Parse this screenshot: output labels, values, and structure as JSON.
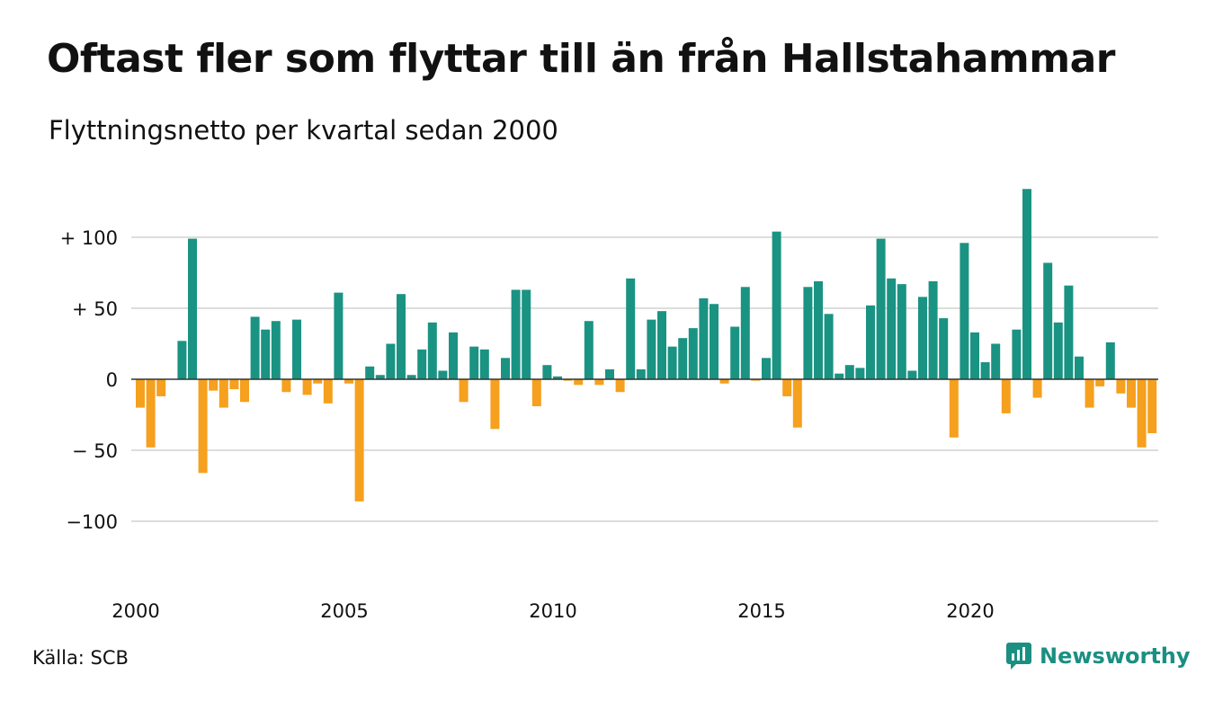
{
  "title": "Oftast fler som flyttar till än från Hallstahammar",
  "subtitle": "Flyttningsnetto per kvartal sedan 2000",
  "source": "Källa: SCB",
  "brand": "Newsworthy",
  "brand_icon": "newsworthy-logo-icon",
  "colors": {
    "positive": "#1a9383",
    "negative": "#f5a01e",
    "grid": "#dddddd",
    "baseline": "#333333"
  },
  "chart_data": {
    "type": "bar",
    "title": "Oftast fler som flyttar till än från Hallstahammar",
    "subtitle": "Flyttningsnetto per kvartal sedan 2000",
    "xlabel": "",
    "ylabel": "",
    "ylim": [
      -140,
      140
    ],
    "grid": true,
    "yticks": [
      100,
      50,
      0,
      -50,
      -100
    ],
    "ytick_labels": [
      "+ 100",
      "+  50",
      "0",
      "− 50",
      "−100"
    ],
    "xticks": [
      "2000",
      "2005",
      "2010",
      "2015",
      "2020"
    ],
    "start": "2000 Q1",
    "series": [
      {
        "values": [
          -20,
          -48,
          -12,
          0,
          27,
          99,
          -66,
          -8,
          -20,
          -7,
          -16,
          44,
          35,
          41,
          -9,
          42,
          -11,
          -3,
          -17,
          61,
          -3,
          -86,
          9,
          3,
          25,
          60,
          3,
          21,
          40,
          6,
          33,
          -16,
          23,
          21,
          -35,
          15,
          63,
          63,
          -19,
          10,
          2,
          -1,
          -4,
          41,
          -4,
          7,
          -9,
          71,
          7,
          42,
          48,
          23,
          29,
          36,
          57,
          53,
          -3,
          37,
          65,
          -1,
          15,
          104,
          -12,
          -34,
          65,
          69,
          46,
          4,
          10,
          8,
          52,
          99,
          71,
          67,
          6,
          58,
          69,
          43,
          -41,
          96,
          33,
          12,
          25,
          -24,
          35,
          134,
          -13,
          82,
          40,
          66,
          16,
          -20,
          -5,
          26,
          -10,
          -20,
          -48,
          -38
        ]
      }
    ]
  }
}
